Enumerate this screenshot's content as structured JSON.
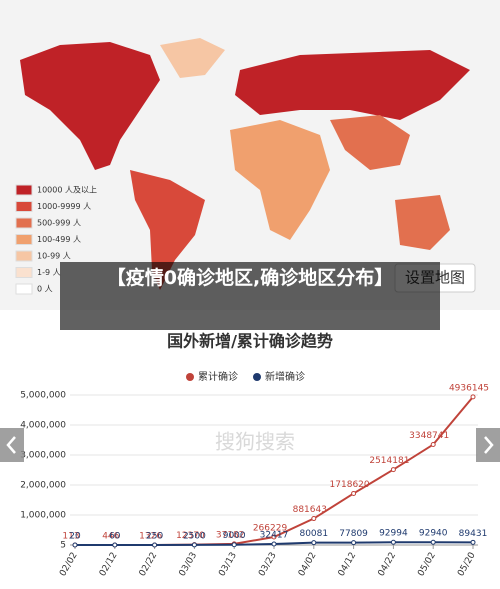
{
  "overlay_title": "【疫情0确诊地区,确诊地区分布】",
  "map": {
    "legend": [
      {
        "label": "10000 人及以上",
        "color": "#bf2227"
      },
      {
        "label": "1000-9999 人",
        "color": "#d8493a"
      },
      {
        "label": "500-999 人",
        "color": "#e2704f"
      },
      {
        "label": "100-499 人",
        "color": "#f0a06e"
      },
      {
        "label": "10-99 人",
        "color": "#f6c6a4"
      },
      {
        "label": "1-9 人",
        "color": "#fae1cf"
      },
      {
        "label": "0 人",
        "color": "#ffffff"
      }
    ],
    "button": "设置地图"
  },
  "watermark": "搜狗搜索",
  "chart_data": {
    "type": "line",
    "title": "国外新增/累计确诊趋势",
    "categories": [
      "02/02",
      "02/12",
      "02/22",
      "03/03",
      "03/13",
      "03/23",
      "04/02",
      "04/12",
      "04/22",
      "05/02",
      "05/20"
    ],
    "series": [
      {
        "name": "累计确诊",
        "color": "#c0433a",
        "values": [
          113,
          446,
          1326,
          12370,
          37182,
          266229,
          881643,
          1718620,
          2514181,
          3348741,
          4936145
        ]
      },
      {
        "name": "新增确诊",
        "color": "#1f3a6e",
        "values": [
          20,
          60,
          250,
          2500,
          9000,
          32417,
          80081,
          77809,
          92994,
          92940,
          89431
        ]
      }
    ],
    "ylim": [
      0,
      5000000
    ],
    "yticks": [
      5,
      {
        "value": 1000000,
        "label": "1,000,000"
      },
      {
        "value": 2000000,
        "label": "2,000,000"
      },
      {
        "value": 3000000,
        "label": "3,000,000"
      },
      {
        "value": 4000000,
        "label": "4,000,000"
      },
      {
        "value": 5000000,
        "label": "5,000,000"
      }
    ],
    "grid": true
  }
}
